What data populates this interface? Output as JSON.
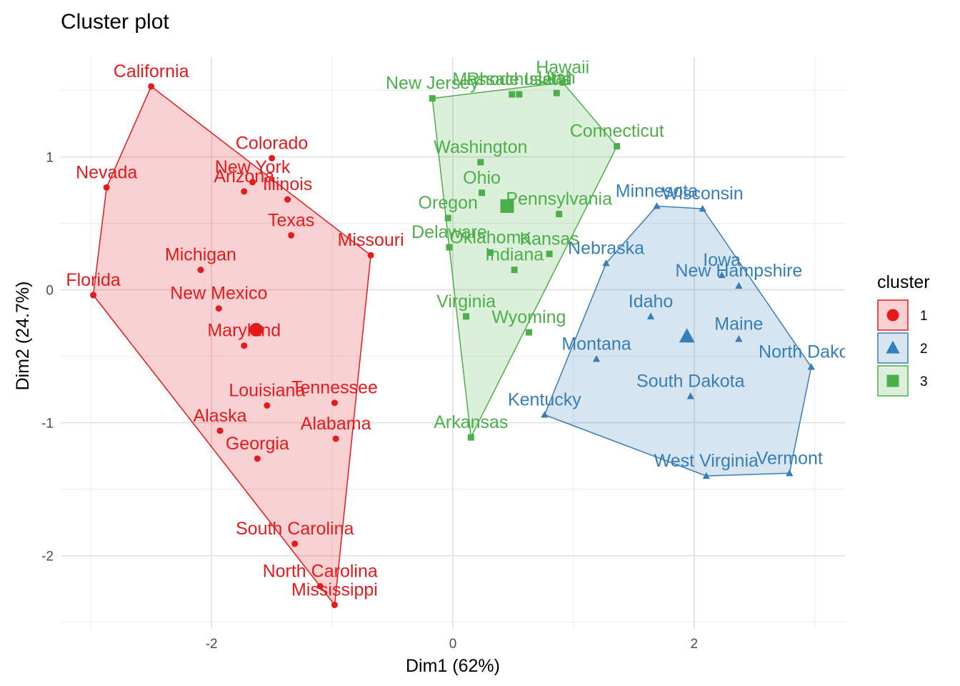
{
  "chart_data": {
    "type": "scatter",
    "title": "Cluster plot",
    "xlabel": "Dim1 (62%)",
    "ylabel": "Dim2 (24.7%)",
    "xlim": [
      -3.25,
      3.25
    ],
    "ylim": [
      -2.55,
      1.75
    ],
    "x_ticks": [
      -2,
      0,
      2
    ],
    "y_ticks": [
      -2,
      -1,
      0,
      1
    ],
    "grid": true,
    "legend_position": "right",
    "legend_title": "cluster",
    "clusters": [
      {
        "name": "1",
        "color": "#e41a1c",
        "shape": "circle",
        "centroid": [
          -1.63,
          -0.3
        ],
        "hull": [
          "California",
          "Missouri",
          "Mississippi",
          "Florida",
          "Nevada"
        ]
      },
      {
        "name": "2",
        "color": "#377eb8",
        "shape": "triangle",
        "centroid": [
          1.94,
          -0.35
        ],
        "hull": [
          "Minnesota",
          "Wisconsin",
          "North Dakota",
          "Vermont",
          "West Virginia",
          "Kentucky",
          "Nebraska"
        ]
      },
      {
        "name": "3",
        "color": "#4daf4a",
        "shape": "square",
        "centroid": [
          0.45,
          0.63
        ],
        "hull": [
          "New Jersey",
          "Hawaii",
          "Connecticut",
          "Arkansas"
        ]
      }
    ],
    "points": [
      {
        "label": "California",
        "x": -2.5,
        "y": 1.53,
        "cluster": "1"
      },
      {
        "label": "Nevada",
        "x": -2.87,
        "y": 0.77,
        "cluster": "1"
      },
      {
        "label": "Colorado",
        "x": -1.5,
        "y": 0.99,
        "cluster": "1"
      },
      {
        "label": "New York",
        "x": -1.66,
        "y": 0.81,
        "cluster": "1"
      },
      {
        "label": "Arizona",
        "x": -1.73,
        "y": 0.74,
        "cluster": "1"
      },
      {
        "label": "Illinois",
        "x": -1.37,
        "y": 0.68,
        "cluster": "1"
      },
      {
        "label": "Texas",
        "x": -1.34,
        "y": 0.41,
        "cluster": "1"
      },
      {
        "label": "Missouri",
        "x": -0.68,
        "y": 0.26,
        "cluster": "1"
      },
      {
        "label": "Michigan",
        "x": -2.09,
        "y": 0.15,
        "cluster": "1"
      },
      {
        "label": "Florida",
        "x": -2.98,
        "y": -0.04,
        "cluster": "1"
      },
      {
        "label": "New Mexico",
        "x": -1.94,
        "y": -0.14,
        "cluster": "1"
      },
      {
        "label": "Maryland",
        "x": -1.73,
        "y": -0.42,
        "cluster": "1"
      },
      {
        "label": "Louisiana",
        "x": -1.54,
        "y": -0.87,
        "cluster": "1"
      },
      {
        "label": "Tennessee",
        "x": -0.98,
        "y": -0.85,
        "cluster": "1"
      },
      {
        "label": "Alaska",
        "x": -1.93,
        "y": -1.06,
        "cluster": "1"
      },
      {
        "label": "Alabama",
        "x": -0.97,
        "y": -1.12,
        "cluster": "1"
      },
      {
        "label": "Georgia",
        "x": -1.62,
        "y": -1.27,
        "cluster": "1"
      },
      {
        "label": "South Carolina",
        "x": -1.31,
        "y": -1.91,
        "cluster": "1"
      },
      {
        "label": "North Carolina",
        "x": -1.1,
        "y": -2.23,
        "cluster": "1"
      },
      {
        "label": "Mississippi",
        "x": -0.98,
        "y": -2.37,
        "cluster": "1"
      },
      {
        "label": "New Jersey",
        "x": -0.17,
        "y": 1.44,
        "cluster": "3"
      },
      {
        "label": "Massachusetts",
        "x": 0.49,
        "y": 1.47,
        "cluster": "3"
      },
      {
        "label": "Rhode Island",
        "x": 0.55,
        "y": 1.47,
        "cluster": "3"
      },
      {
        "label": "Utah",
        "x": 0.86,
        "y": 1.48,
        "cluster": "3"
      },
      {
        "label": "Hawaii",
        "x": 0.91,
        "y": 1.56,
        "cluster": "3"
      },
      {
        "label": "Connecticut",
        "x": 1.36,
        "y": 1.08,
        "cluster": "3"
      },
      {
        "label": "Washington",
        "x": 0.23,
        "y": 0.96,
        "cluster": "3"
      },
      {
        "label": "Ohio",
        "x": 0.24,
        "y": 0.73,
        "cluster": "3"
      },
      {
        "label": "Pennsylvania",
        "x": 0.88,
        "y": 0.57,
        "cluster": "3"
      },
      {
        "label": "Oregon",
        "x": -0.04,
        "y": 0.54,
        "cluster": "3"
      },
      {
        "label": "Delaware",
        "x": -0.03,
        "y": 0.32,
        "cluster": "3"
      },
      {
        "label": "Oklahoma",
        "x": 0.31,
        "y": 0.28,
        "cluster": "3"
      },
      {
        "label": "Kansas",
        "x": 0.8,
        "y": 0.27,
        "cluster": "3"
      },
      {
        "label": "Indiana",
        "x": 0.51,
        "y": 0.15,
        "cluster": "3"
      },
      {
        "label": "Virginia",
        "x": 0.11,
        "y": -0.2,
        "cluster": "3"
      },
      {
        "label": "Wyoming",
        "x": 0.63,
        "y": -0.32,
        "cluster": "3"
      },
      {
        "label": "Arkansas",
        "x": 0.15,
        "y": -1.11,
        "cluster": "3"
      },
      {
        "label": "Minnesota",
        "x": 1.69,
        "y": 0.63,
        "cluster": "2"
      },
      {
        "label": "Wisconsin",
        "x": 2.07,
        "y": 0.61,
        "cluster": "2"
      },
      {
        "label": "Nebraska",
        "x": 1.27,
        "y": 0.2,
        "cluster": "2"
      },
      {
        "label": "Iowa",
        "x": 2.23,
        "y": 0.11,
        "cluster": "2"
      },
      {
        "label": "New Hampshire",
        "x": 2.37,
        "y": 0.03,
        "cluster": "2"
      },
      {
        "label": "Idaho",
        "x": 1.64,
        "y": -0.2,
        "cluster": "2"
      },
      {
        "label": "Maine",
        "x": 2.37,
        "y": -0.37,
        "cluster": "2"
      },
      {
        "label": "Montana",
        "x": 1.19,
        "y": -0.52,
        "cluster": "2"
      },
      {
        "label": "North Dakota",
        "x": 2.97,
        "y": -0.58,
        "cluster": "2"
      },
      {
        "label": "South Dakota",
        "x": 1.97,
        "y": -0.8,
        "cluster": "2"
      },
      {
        "label": "Kentucky",
        "x": 0.76,
        "y": -0.94,
        "cluster": "2"
      },
      {
        "label": "West Virginia",
        "x": 2.1,
        "y": -1.4,
        "cluster": "2"
      },
      {
        "label": "Vermont",
        "x": 2.79,
        "y": -1.38,
        "cluster": "2"
      }
    ]
  }
}
